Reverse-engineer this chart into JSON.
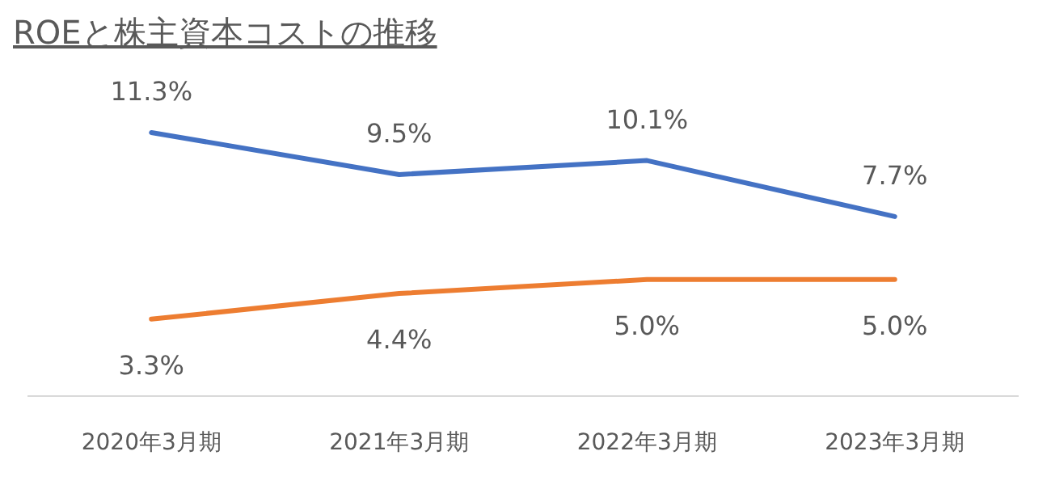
{
  "chart_data": {
    "type": "line",
    "title": "ROEと株主資本コストの推移",
    "categories": [
      "2020年3月期",
      "2021年3月期",
      "2022年3月期",
      "2023年3月期"
    ],
    "series": [
      {
        "color": "#4472c4",
        "values": [
          11.3,
          9.5,
          10.1,
          7.7
        ],
        "value_labels": [
          "11.3%",
          "9.5%",
          "10.1%",
          "7.7%"
        ]
      },
      {
        "color": "#ed7d31",
        "values": [
          3.3,
          4.4,
          5.0,
          5.0
        ],
        "value_labels": [
          "3.3%",
          "4.4%",
          "5.0%",
          "5.0%"
        ]
      }
    ],
    "marker": "none",
    "line_style": "solid",
    "tick_labels": "x"
  }
}
